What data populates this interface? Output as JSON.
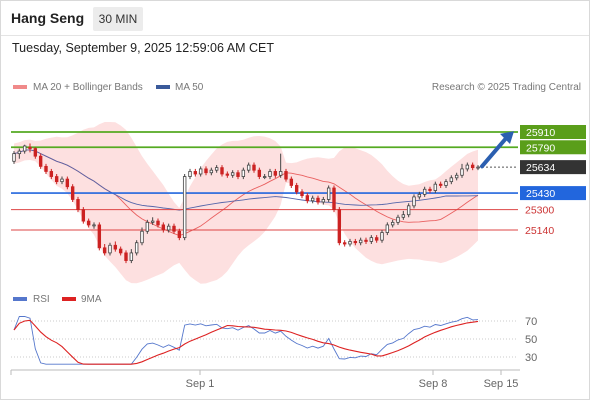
{
  "header": {
    "instrument": "Hang Seng",
    "timeframe": "30 MIN",
    "datetime": "Tuesday, September 9, 2025 12:59:06 AM CET"
  },
  "legend": {
    "ma20_bb": "MA 20 + Bollinger Bands",
    "ma50": "MA 50",
    "credit": "Research © 2025 Trading Central",
    "rsi": "RSI",
    "rsi_ma": "9MA"
  },
  "colors": {
    "up_candle": "#444444",
    "down_candle": "#cc2222",
    "ma20": "#e96060",
    "bollinger_fill": "#fde0e0",
    "ma50": "#5566aa",
    "resistance": "#55aa22",
    "pivot": "#2266dd",
    "support": "#dd4444",
    "rsi": "#5577cc",
    "rsi_ma": "#dd2222"
  },
  "chart_data": {
    "type": "candlestick",
    "price_levels": [
      {
        "label": "25910",
        "value": 25910,
        "kind": "resistance"
      },
      {
        "label": "25790",
        "value": 25790,
        "kind": "resistance"
      },
      {
        "label": "25634",
        "value": 25634,
        "kind": "last_price"
      },
      {
        "label": "25430",
        "value": 25430,
        "kind": "pivot"
      },
      {
        "label": "25300",
        "value": 25300,
        "kind": "support"
      },
      {
        "label": "25140",
        "value": 25140,
        "kind": "support"
      }
    ],
    "x_ticks": [
      "Sep 1",
      "Sep 8",
      "Sep 15"
    ],
    "rsi_ticks": [
      "70",
      "50",
      "30"
    ],
    "candles": [
      [
        25680,
        25740,
        25660,
        25760
      ],
      [
        25740,
        25760,
        25700,
        25780
      ],
      [
        25760,
        25800,
        25740,
        25810
      ],
      [
        25790,
        25780,
        25750,
        25820
      ],
      [
        25780,
        25720,
        25700,
        25790
      ],
      [
        25720,
        25640,
        25620,
        25740
      ],
      [
        25640,
        25600,
        25580,
        25660
      ],
      [
        25600,
        25560,
        25540,
        25620
      ],
      [
        25560,
        25520,
        25500,
        25580
      ],
      [
        25520,
        25540,
        25500,
        25560
      ],
      [
        25540,
        25480,
        25460,
        25560
      ],
      [
        25480,
        25380,
        25360,
        25500
      ],
      [
        25380,
        25300,
        25280,
        25400
      ],
      [
        25300,
        25210,
        25190,
        25320
      ],
      [
        25210,
        25180,
        25160,
        25230
      ],
      [
        25180,
        25180,
        25150,
        25200
      ],
      [
        25180,
        25000,
        24980,
        25200
      ],
      [
        25000,
        24960,
        24940,
        25030
      ],
      [
        24960,
        25020,
        24940,
        25040
      ],
      [
        25020,
        24990,
        24970,
        25050
      ],
      [
        24990,
        24960,
        24940,
        25010
      ],
      [
        24960,
        24900,
        24880,
        24980
      ],
      [
        24900,
        24960,
        24880,
        24990
      ],
      [
        24960,
        25040,
        24940,
        25060
      ],
      [
        25040,
        25130,
        25020,
        25160
      ],
      [
        25130,
        25200,
        25110,
        25220
      ],
      [
        25200,
        25210,
        25180,
        25240
      ],
      [
        25210,
        25180,
        25160,
        25230
      ],
      [
        25180,
        25140,
        25120,
        25200
      ],
      [
        25140,
        25170,
        25120,
        25190
      ],
      [
        25170,
        25130,
        25110,
        25190
      ],
      [
        25130,
        25080,
        25060,
        25150
      ],
      [
        25080,
        25560,
        25060,
        25580
      ],
      [
        25560,
        25600,
        25540,
        25620
      ],
      [
        25600,
        25580,
        25560,
        25620
      ],
      [
        25580,
        25620,
        25560,
        25640
      ],
      [
        25620,
        25590,
        25570,
        25640
      ],
      [
        25590,
        25610,
        25570,
        25630
      ],
      [
        25610,
        25630,
        25590,
        25650
      ],
      [
        25630,
        25580,
        25560,
        25650
      ],
      [
        25580,
        25570,
        25550,
        25600
      ],
      [
        25570,
        25590,
        25550,
        25610
      ],
      [
        25590,
        25560,
        25540,
        25610
      ],
      [
        25560,
        25610,
        25540,
        25630
      ],
      [
        25610,
        25650,
        25590,
        25670
      ],
      [
        25650,
        25610,
        25590,
        25670
      ],
      [
        25610,
        25560,
        25540,
        25630
      ],
      [
        25560,
        25560,
        25540,
        25580
      ],
      [
        25560,
        25600,
        25540,
        25620
      ],
      [
        25600,
        25570,
        25550,
        25620
      ],
      [
        25570,
        25600,
        25550,
        25740
      ],
      [
        25600,
        25540,
        25520,
        25620
      ],
      [
        25540,
        25490,
        25470,
        25560
      ],
      [
        25490,
        25440,
        25420,
        25510
      ],
      [
        25440,
        25410,
        25390,
        25460
      ],
      [
        25410,
        25370,
        25350,
        25430
      ],
      [
        25370,
        25390,
        25350,
        25410
      ],
      [
        25390,
        25360,
        25340,
        25410
      ],
      [
        25360,
        25380,
        25340,
        25400
      ],
      [
        25380,
        25470,
        25360,
        25490
      ],
      [
        25470,
        25300,
        25280,
        25490
      ],
      [
        25300,
        25040,
        25020,
        25320
      ],
      [
        25040,
        25030,
        25010,
        25060
      ],
      [
        25030,
        25050,
        25010,
        25070
      ],
      [
        25050,
        25040,
        25020,
        25070
      ],
      [
        25040,
        25060,
        25020,
        25080
      ],
      [
        25060,
        25050,
        25030,
        25080
      ],
      [
        25050,
        25080,
        25030,
        25100
      ],
      [
        25080,
        25060,
        25040,
        25100
      ],
      [
        25060,
        25120,
        25040,
        25140
      ],
      [
        25120,
        25180,
        25100,
        25200
      ],
      [
        25180,
        25200,
        25160,
        25220
      ],
      [
        25200,
        25240,
        25180,
        25260
      ],
      [
        25240,
        25260,
        25220,
        25290
      ],
      [
        25260,
        25330,
        25240,
        25350
      ],
      [
        25330,
        25400,
        25310,
        25420
      ],
      [
        25400,
        25420,
        25380,
        25440
      ],
      [
        25420,
        25460,
        25400,
        25480
      ],
      [
        25460,
        25450,
        25430,
        25480
      ],
      [
        25450,
        25500,
        25430,
        25520
      ],
      [
        25500,
        25490,
        25470,
        25520
      ],
      [
        25490,
        25520,
        25470,
        25540
      ],
      [
        25520,
        25550,
        25500,
        25570
      ],
      [
        25550,
        25570,
        25530,
        25590
      ],
      [
        25570,
        25620,
        25550,
        25660
      ],
      [
        25620,
        25650,
        25600,
        25670
      ],
      [
        25650,
        25630,
        25610,
        25670
      ],
      [
        25630,
        25634,
        25610,
        25650
      ]
    ]
  }
}
